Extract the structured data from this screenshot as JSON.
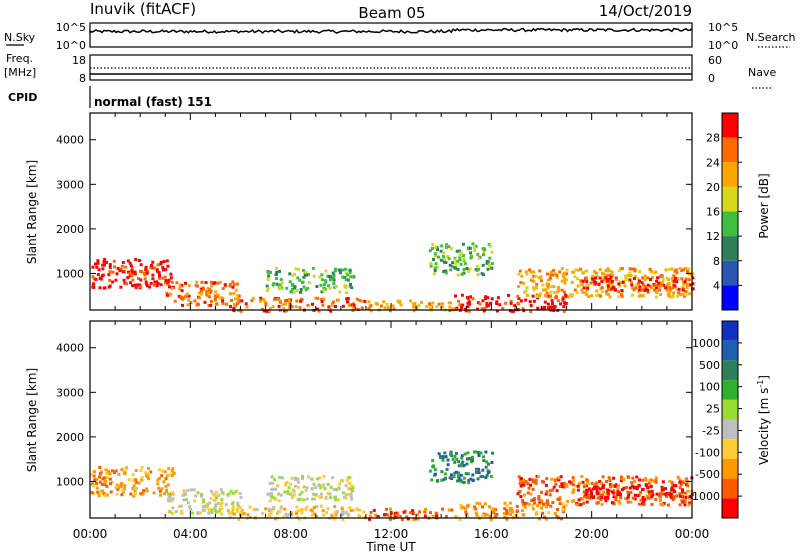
{
  "header": {
    "station": "Inuvik (fitACF)",
    "beam": "Beam 05",
    "date": "14/Oct/2019"
  },
  "colors": {
    "frame": "#000000",
    "power_scale": [
      "#0000ff",
      "#2b55b3",
      "#2f7f5a",
      "#3fbf3f",
      "#d8d81a",
      "#ffa500",
      "#ff6a00",
      "#ff0000"
    ],
    "velocity_scale": [
      "#ff0000",
      "#ff5a00",
      "#ff9900",
      "#ffcc33",
      "#bebebe",
      "#99dd33",
      "#2fb02f",
      "#2f7f5a",
      "#1f5fb0",
      "#1030c0"
    ]
  },
  "panels": {
    "sky": {
      "left_label": "N.Sky",
      "left_ticks": [
        "10^5",
        "10^0"
      ],
      "right_ticks": [
        "10^5",
        "10^0"
      ],
      "right_label": "N.Search"
    },
    "freq": {
      "left_label_1": "Freq.",
      "left_label_2": "[MHz]",
      "left_ticks": [
        "18",
        "8"
      ],
      "right_ticks": [
        "60",
        "0"
      ],
      "right_label": "Nave"
    },
    "cpid": {
      "label": "CPID",
      "value": "normal (fast) 151"
    }
  },
  "chart_data": [
    {
      "type": "heatmap",
      "title": "",
      "ylabel": "Slant Range [km]",
      "xlabel": "",
      "xlim": [
        "00:00",
        "00:00"
      ],
      "ylim": [
        180,
        4600
      ],
      "yticks": [
        "4000",
        "3000",
        "2000",
        "1000"
      ],
      "colorbar_label": "Power [dB]",
      "colorbar_ticks": [
        "28",
        "24",
        "20",
        "16",
        "12",
        "8",
        "4"
      ],
      "bands": [
        {
          "start_h": 0.0,
          "end_h": 3.3,
          "range_lo": 700,
          "range_hi": 1350,
          "level": 7
        },
        {
          "start_h": 3.0,
          "end_h": 6.0,
          "range_lo": 300,
          "range_hi": 850,
          "level": 6
        },
        {
          "start_h": 5.5,
          "end_h": 11.0,
          "range_lo": 180,
          "range_hi": 480,
          "level": 6
        },
        {
          "start_h": 7.0,
          "end_h": 10.5,
          "range_lo": 600,
          "range_hi": 1150,
          "level": 3
        },
        {
          "start_h": 11.0,
          "end_h": 14.5,
          "range_lo": 180,
          "range_hi": 420,
          "level": 5
        },
        {
          "start_h": 13.5,
          "end_h": 16.0,
          "range_lo": 1000,
          "range_hi": 1700,
          "level": 3
        },
        {
          "start_h": 14.5,
          "end_h": 19.0,
          "range_lo": 180,
          "range_hi": 550,
          "level": 7
        },
        {
          "start_h": 17.0,
          "end_h": 24.0,
          "range_lo": 500,
          "range_hi": 1150,
          "level": 5
        },
        {
          "start_h": 19.5,
          "end_h": 24.0,
          "range_lo": 650,
          "range_hi": 950,
          "level": 7
        }
      ]
    },
    {
      "type": "heatmap",
      "title": "",
      "ylabel": "Slant Range [km]",
      "xlabel": "Time UT",
      "xticks": [
        "00:00",
        "04:00",
        "08:00",
        "12:00",
        "16:00",
        "20:00",
        "00:00"
      ],
      "ylim": [
        180,
        4600
      ],
      "yticks": [
        "4000",
        "3000",
        "2000",
        "1000"
      ],
      "colorbar_label": "Velocity [m s^-1]",
      "colorbar_ticks": [
        "1000",
        "500",
        "100",
        "25",
        "-25",
        "-100",
        "-500",
        "-1000"
      ],
      "bands": [
        {
          "start_h": 0.0,
          "end_h": 3.3,
          "range_lo": 700,
          "range_hi": 1350,
          "level": 2
        },
        {
          "start_h": 3.0,
          "end_h": 6.0,
          "range_lo": 300,
          "range_hi": 850,
          "level": 4
        },
        {
          "start_h": 5.5,
          "end_h": 11.0,
          "range_lo": 180,
          "range_hi": 480,
          "level": 3
        },
        {
          "start_h": 7.0,
          "end_h": 10.5,
          "range_lo": 600,
          "range_hi": 1150,
          "level": 4
        },
        {
          "start_h": 11.0,
          "end_h": 14.5,
          "range_lo": 180,
          "range_hi": 420,
          "level": 1
        },
        {
          "start_h": 13.5,
          "end_h": 16.0,
          "range_lo": 1000,
          "range_hi": 1700,
          "level": 7
        },
        {
          "start_h": 14.5,
          "end_h": 19.0,
          "range_lo": 180,
          "range_hi": 550,
          "level": 2
        },
        {
          "start_h": 17.0,
          "end_h": 24.0,
          "range_lo": 500,
          "range_hi": 1150,
          "level": 1
        },
        {
          "start_h": 19.5,
          "end_h": 24.0,
          "range_lo": 650,
          "range_hi": 950,
          "level": 0
        }
      ]
    }
  ]
}
